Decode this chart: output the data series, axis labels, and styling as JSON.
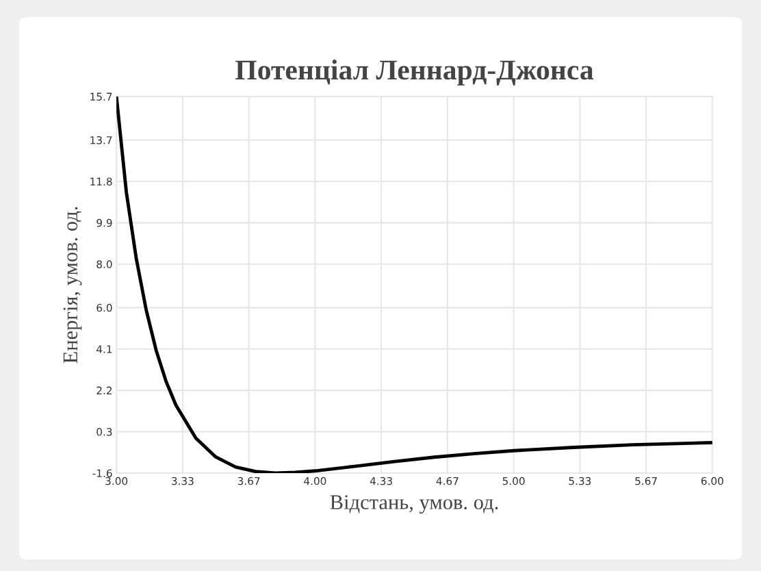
{
  "chart_data": {
    "type": "line",
    "title": "Потенціал Леннард-Джонса",
    "xlabel": "Відстань, умов. од.",
    "ylabel": "Енергія, умов. од.",
    "x": [
      3.0,
      3.05,
      3.1,
      3.15,
      3.2,
      3.25,
      3.3,
      3.4,
      3.5,
      3.6,
      3.7,
      3.8,
      3.9,
      4.0,
      4.2,
      4.4,
      4.6,
      4.8,
      5.0,
      5.3,
      5.6,
      6.0
    ],
    "series": [
      {
        "color": "#000000",
        "values": [
          15.7,
          11.3,
          8.25,
          5.89,
          4.04,
          2.61,
          1.51,
          0.0,
          -0.86,
          -1.32,
          -1.53,
          -1.6,
          -1.57,
          -1.5,
          -1.29,
          -1.07,
          -0.87,
          -0.71,
          -0.57,
          -0.42,
          -0.3,
          -0.2
        ]
      }
    ],
    "xlim": [
      3.0,
      6.0
    ],
    "ylim": [
      -1.6,
      15.7
    ],
    "xticks": [
      {
        "value": 3.0,
        "label": "3.00"
      },
      {
        "value": 3.3333,
        "label": "3.33"
      },
      {
        "value": 3.6667,
        "label": "3.67"
      },
      {
        "value": 4.0,
        "label": "4.00"
      },
      {
        "value": 4.3333,
        "label": "4.33"
      },
      {
        "value": 4.6667,
        "label": "4.67"
      },
      {
        "value": 5.0,
        "label": "5.00"
      },
      {
        "value": 5.3333,
        "label": "5.33"
      },
      {
        "value": 5.6667,
        "label": "5.67"
      },
      {
        "value": 6.0,
        "label": "6.00"
      }
    ],
    "yticks": [
      -1.6,
      0.3,
      2.2,
      4.1,
      {
        "value": 6.0,
        "label": "6.0"
      },
      {
        "value": 8.0,
        "label": "8.0"
      },
      9.9,
      11.8,
      13.7,
      15.7
    ],
    "grid": true,
    "marker": "none",
    "line_style": "solid",
    "legend": false
  }
}
